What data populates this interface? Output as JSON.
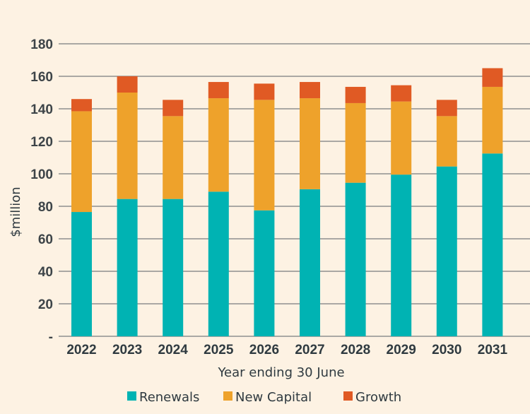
{
  "chart_data": {
    "type": "bar",
    "stacked": true,
    "xlabel": "Year ending 30 June",
    "ylabel": "$million",
    "ylim": [
      0,
      180
    ],
    "yticks": [
      0,
      20,
      40,
      60,
      80,
      100,
      120,
      140,
      160,
      180
    ],
    "ytick_labels": [
      "-",
      "20",
      "40",
      "60",
      "80",
      "100",
      "120",
      "140",
      "160",
      "180"
    ],
    "grid": true,
    "legend": "bottom",
    "categories": [
      "2022",
      "2023",
      "2024",
      "2025",
      "2026",
      "2027",
      "2028",
      "2029",
      "2030",
      "2031"
    ],
    "series": [
      {
        "name": "Renewals",
        "color": "#00b3b3",
        "values": [
          76.5,
          84.5,
          84.5,
          89,
          77.5,
          90.5,
          94.5,
          99.5,
          104.5,
          112.5
        ]
      },
      {
        "name": "New Capital",
        "color": "#eea22b",
        "values": [
          62,
          65.5,
          51,
          57.5,
          68,
          56,
          49,
          45,
          31,
          41
        ]
      },
      {
        "name": "Growth",
        "color": "#e05a24",
        "values": [
          7.5,
          10,
          10,
          10,
          10,
          10,
          10,
          10,
          10,
          11.5
        ]
      }
    ]
  }
}
